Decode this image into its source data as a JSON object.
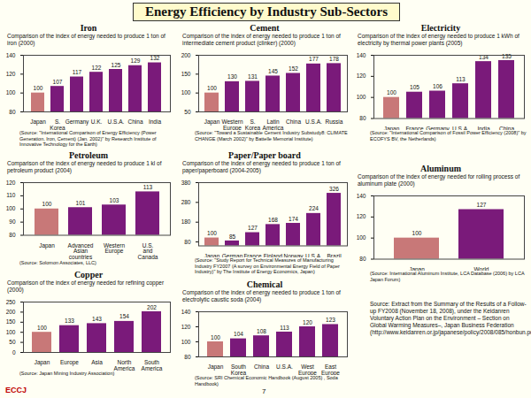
{
  "title": "Energy Efficiency by Industry Sub-Sectors",
  "chart_data": [
    {
      "type": "bar",
      "title": "Iron",
      "subtitle": "Comparison of the index of energy needed  to produce 1 ton of iron (2000)",
      "categories": [
        "Japan",
        "S. Korea",
        "Germany",
        "U.K.",
        "U.S.A.",
        "China",
        "India"
      ],
      "values": [
        100,
        107,
        117,
        122,
        125,
        129,
        132
      ],
      "colors": [
        "#c87878",
        "#7a1a7a",
        "#7a1a7a",
        "#7a1a7a",
        "#7a1a7a",
        "#7a1a7a",
        "#7a1a7a"
      ],
      "ylim": [
        80,
        140
      ],
      "yticks": [
        80,
        100,
        120,
        140
      ],
      "grid": false,
      "data_labels": true,
      "source": "(Source: \"International Comparison of Energy Efficiency (Power Generation, Iron, Cement) (Jan. 2002)\" by Research Institute of Innovative Technology for the Earth)"
    },
    {
      "type": "bar",
      "title": "Cement",
      "subtitle": "Comparison of the index of energy needed to produce 1 ton of intermediate cement product (clinker) (2000)",
      "categories": [
        "Japan",
        "Western Europe",
        "S. Korea",
        "Latin America",
        "China",
        "U.S.A.",
        "Russia"
      ],
      "values": [
        100,
        130,
        131,
        145,
        152,
        177,
        178
      ],
      "colors": [
        "#c87878",
        "#7a1a7a",
        "#7a1a7a",
        "#7a1a7a",
        "#7a1a7a",
        "#7a1a7a",
        "#7a1a7a"
      ],
      "ylim": [
        50,
        200
      ],
      "yticks": [
        50,
        100,
        150,
        200
      ],
      "grid": false,
      "data_labels": true,
      "source": "(Source: \"Toward a Sustainable Cement Industry Substudy8: CLIMATE CHANGE (March 2002)\" by Battelle Memorial Institute)"
    },
    {
      "type": "bar",
      "title": "Electricity",
      "subtitle": "Comparison of the index of energy needed to produce 1 kWh of electricity by thermal power plants (2005)",
      "categories": [
        "Japan",
        "France",
        "Germany",
        "U.S.A.",
        "India",
        "China"
      ],
      "values": [
        100,
        105,
        106,
        113,
        134,
        135
      ],
      "colors": [
        "#c87878",
        "#7a1a7a",
        "#7a1a7a",
        "#7a1a7a",
        "#7a1a7a",
        "#7a1a7a"
      ],
      "ylim": [
        80,
        140
      ],
      "yticks": [
        80,
        100,
        120,
        140
      ],
      "grid": false,
      "data_labels": true,
      "source": "(Source: \"International Comparison of Fossil Power Efficiency (2008)\" by ECOFYS BV, the Netherlands)"
    },
    {
      "type": "bar",
      "title": "Petroleum",
      "subtitle": "Comparison of the index of energy needed to produce 1 kl of petroleum product (2004)",
      "categories": [
        "Japan",
        "Advanced Asian countries",
        "Western Europe",
        "U.S. and Canada"
      ],
      "values": [
        100,
        101,
        103,
        113
      ],
      "colors": [
        "#c87878",
        "#7a1a7a",
        "#7a1a7a",
        "#7a1a7a"
      ],
      "ylim": [
        80,
        120
      ],
      "yticks": [
        80,
        90,
        100,
        110,
        120
      ],
      "grid": false,
      "data_labels": true,
      "source": "(Source: Solomon Associates, LLC)"
    },
    {
      "type": "bar",
      "title": "Paper/Paper board",
      "subtitle": "Comparison of the index of energy needed to produce 1 ton of paper/paperboard (2004-2005)",
      "categories": [
        "Japan",
        "German",
        "France",
        "Finland",
        "Norway",
        "U.S.A.",
        "Brazil"
      ],
      "values": [
        100,
        85,
        127,
        168,
        174,
        224,
        326
      ],
      "colors": [
        "#c87878",
        "#7a1a7a",
        "#7a1a7a",
        "#7a1a7a",
        "#7a1a7a",
        "#7a1a7a",
        "#7a1a7a"
      ],
      "ylim": [
        60,
        380
      ],
      "yticks": [
        80,
        180,
        280,
        380
      ],
      "grid": false,
      "data_labels": true,
      "source": "(Source: \"Study Report for Technical Measures of Manufacturing Industry FY2007 (A survey on Environmental Energy Field of Paper Industry)\" by The Institute of Energy Economics, Japan)"
    },
    {
      "type": "bar",
      "title": "Aluminum",
      "subtitle": "Comparison of the index of energy needed for rolling process of aluminum plate (2000)",
      "categories": [
        "Japan",
        "World"
      ],
      "values": [
        100,
        127
      ],
      "colors": [
        "#c87878",
        "#7a1a7a"
      ],
      "ylim": [
        80,
        140
      ],
      "yticks": [
        80,
        100,
        120,
        140
      ],
      "grid": false,
      "data_labels": true,
      "source": "(Source: International Aluminum Institute, LCA Database (2006) by LCA Japan Forum)"
    },
    {
      "type": "bar",
      "title": "Copper",
      "subtitle": "Comparison of the index of energy needed for refining copper (2000)",
      "categories": [
        "Japan",
        "Europe",
        "Asia",
        "North America",
        "South America"
      ],
      "values": [
        100,
        133,
        143,
        154,
        202
      ],
      "colors": [
        "#c87878",
        "#7a1a7a",
        "#7a1a7a",
        "#7a1a7a",
        "#7a1a7a"
      ],
      "ylim": [
        0,
        250
      ],
      "yticks": [
        0,
        50,
        100,
        150,
        200,
        250
      ],
      "grid": false,
      "data_labels": true,
      "source": "(Source: Japan Mining Industry Association)"
    },
    {
      "type": "bar",
      "title": "Chemical",
      "subtitle": "Comparison of the index of energy needed to produce 1 ton of electrolytic caustic soda (2004)",
      "categories": [
        "Japan",
        "South Korea",
        "China",
        "U.S.A.",
        "West Europe",
        "East Europe"
      ],
      "values": [
        100,
        104,
        108,
        113,
        120,
        123
      ],
      "colors": [
        "#c87878",
        "#7a1a7a",
        "#7a1a7a",
        "#7a1a7a",
        "#7a1a7a",
        "#7a1a7a"
      ],
      "ylim": [
        80,
        140
      ],
      "yticks": [
        80,
        100,
        120,
        140
      ],
      "grid": false,
      "data_labels": true,
      "source": "(Source: SRI Chemical Economic Handbook (August 2005) , Soda Handbook)"
    }
  ],
  "note": "Source: Extract from the Summary of the Results of a Follow-up FY2008 (November 18, 2008), under the Keidanren Voluntary Action Plan on the Environment – Section on Global Warming Measures–, Japan Business Federation (http://www.keidanren.or.jp/japanese/policy/2008/085/honbun.pdf)",
  "footer": {
    "logo": "ECCJ",
    "page": "7"
  }
}
